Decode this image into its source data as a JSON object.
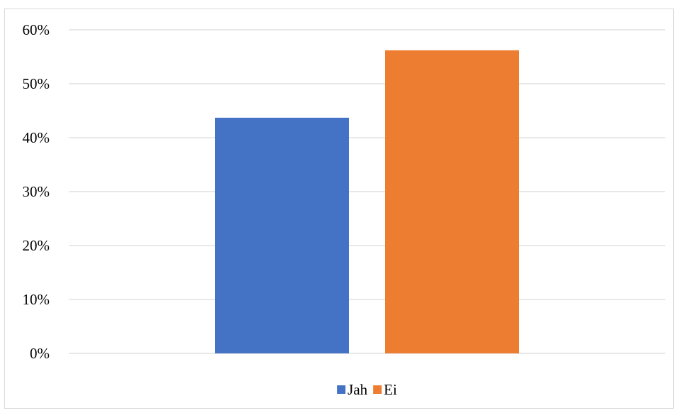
{
  "chart_data": {
    "type": "bar",
    "categories": [
      ""
    ],
    "series": [
      {
        "name": "Jah",
        "values": [
          0.437
        ],
        "color": "#4472C4"
      },
      {
        "name": "Ei",
        "values": [
          0.562
        ],
        "color": "#ED7D31"
      }
    ],
    "y_axis": {
      "min": 0,
      "max": 0.6,
      "step": 0.1,
      "tick_labels": [
        "0%",
        "10%",
        "20%",
        "30%",
        "40%",
        "50%",
        "60%"
      ]
    },
    "grid": true,
    "gridline_color": "#d9d9d9",
    "legend_position": "bottom",
    "title": "",
    "xlabel": "",
    "ylabel": ""
  }
}
